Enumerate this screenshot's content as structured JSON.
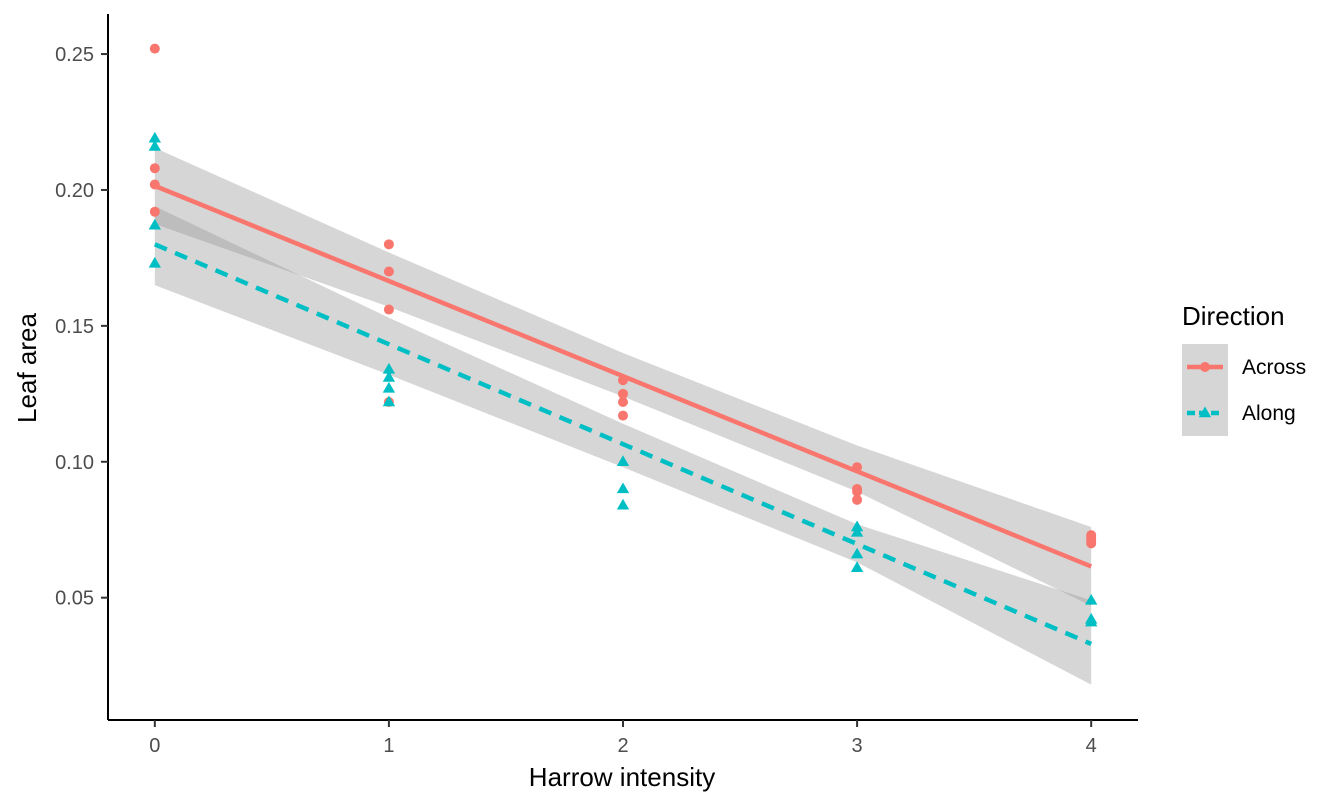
{
  "chart_data": {
    "type": "scatter",
    "title": "",
    "xlabel": "Harrow intensity",
    "ylabel": "Leaf area",
    "xlim": [
      -0.2,
      4.2
    ],
    "ylim": [
      0.005,
      0.264
    ],
    "xticks": [
      0,
      1,
      2,
      3,
      4
    ],
    "xtick_labels": [
      "0",
      "1",
      "2",
      "3",
      "4"
    ],
    "yticks": [
      0.05,
      0.1,
      0.15,
      0.2,
      0.25
    ],
    "ytick_labels": [
      "0.05",
      "0.10",
      "0.15",
      "0.20",
      "0.25"
    ],
    "grid": false,
    "legend": {
      "title": "Direction",
      "placement": "right"
    },
    "series": [
      {
        "name": "Across",
        "color": "#F8766D",
        "marker": "circle",
        "line_style": "solid",
        "points": [
          [
            0,
            0.252
          ],
          [
            0,
            0.208
          ],
          [
            0,
            0.202
          ],
          [
            0,
            0.192
          ],
          [
            1,
            0.18
          ],
          [
            1,
            0.17
          ],
          [
            1,
            0.156
          ],
          [
            1,
            0.122
          ],
          [
            2,
            0.13
          ],
          [
            2,
            0.125
          ],
          [
            2,
            0.122
          ],
          [
            2,
            0.117
          ],
          [
            3,
            0.098
          ],
          [
            3,
            0.09
          ],
          [
            3,
            0.089
          ],
          [
            3,
            0.086
          ],
          [
            4,
            0.073
          ],
          [
            4,
            0.072
          ],
          [
            4,
            0.071
          ],
          [
            4,
            0.07
          ]
        ],
        "fit": {
          "x": [
            0,
            4
          ],
          "y": [
            0.2015,
            0.0615
          ]
        },
        "ci_upper": {
          "x": [
            0,
            1,
            2,
            3,
            4
          ],
          "y": [
            0.2155,
            0.177,
            0.14,
            0.106,
            0.076
          ]
        },
        "ci_lower": {
          "x": [
            0,
            1,
            2,
            3,
            4
          ],
          "y": [
            0.1875,
            0.157,
            0.124,
            0.089,
            0.047
          ]
        }
      },
      {
        "name": "Along",
        "color": "#00BFC4",
        "marker": "triangle",
        "line_style": "dashed",
        "points": [
          [
            0,
            0.219
          ],
          [
            0,
            0.216
          ],
          [
            0,
            0.187
          ],
          [
            0,
            0.173
          ],
          [
            1,
            0.134
          ],
          [
            1,
            0.131
          ],
          [
            1,
            0.127
          ],
          [
            1,
            0.122
          ],
          [
            2,
            0.1
          ],
          [
            2,
            0.09
          ],
          [
            2,
            0.084
          ],
          [
            3,
            0.076
          ],
          [
            3,
            0.074
          ],
          [
            3,
            0.066
          ],
          [
            3,
            0.061
          ],
          [
            4,
            0.049
          ],
          [
            4,
            0.042
          ],
          [
            4,
            0.041
          ]
        ],
        "fit": {
          "x": [
            0,
            4
          ],
          "y": [
            0.18,
            0.033
          ]
        },
        "ci_upper": {
          "x": [
            0,
            1,
            2,
            3,
            4
          ],
          "y": [
            0.194,
            0.153,
            0.114,
            0.077,
            0.049
          ]
        },
        "ci_lower": {
          "x": [
            0,
            1,
            2,
            3,
            4
          ],
          "y": [
            0.165,
            0.132,
            0.098,
            0.063,
            0.018
          ]
        }
      }
    ]
  }
}
